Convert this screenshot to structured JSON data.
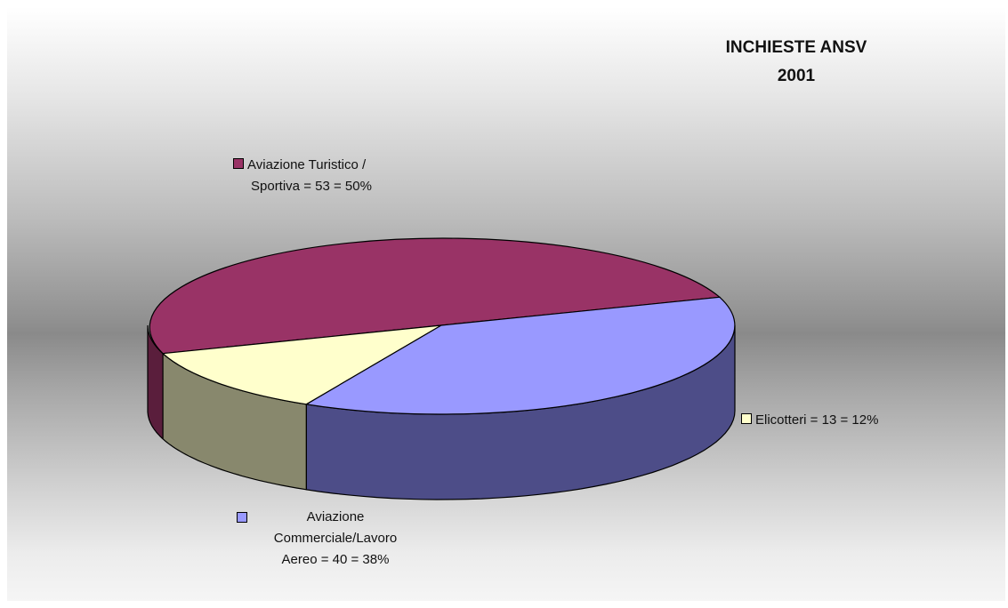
{
  "chart_data": {
    "type": "pie",
    "title": [
      "INCHIESTE ANSV",
      "2001"
    ],
    "slices": [
      {
        "label_lines": [
          "Aviazione Turistico /",
          "Sportiva = 53 = 50%"
        ],
        "value": 53,
        "percent": 50,
        "color": "#993366",
        "side_color": "#5a1e3c"
      },
      {
        "label_lines": [
          "Elicotteri = 13 = 12%"
        ],
        "value": 13,
        "percent": 12,
        "color": "#ffffcc",
        "side_color": "#88886d"
      },
      {
        "label_lines": [
          "Aviazione",
          "Commerciale/Lavoro",
          "Aereo = 40 = 38%"
        ],
        "value": 40,
        "percent": 38,
        "color": "#9999ff",
        "side_color": "#4d4d88"
      }
    ],
    "legend_placement": "labels beside slices",
    "three_d": true
  }
}
